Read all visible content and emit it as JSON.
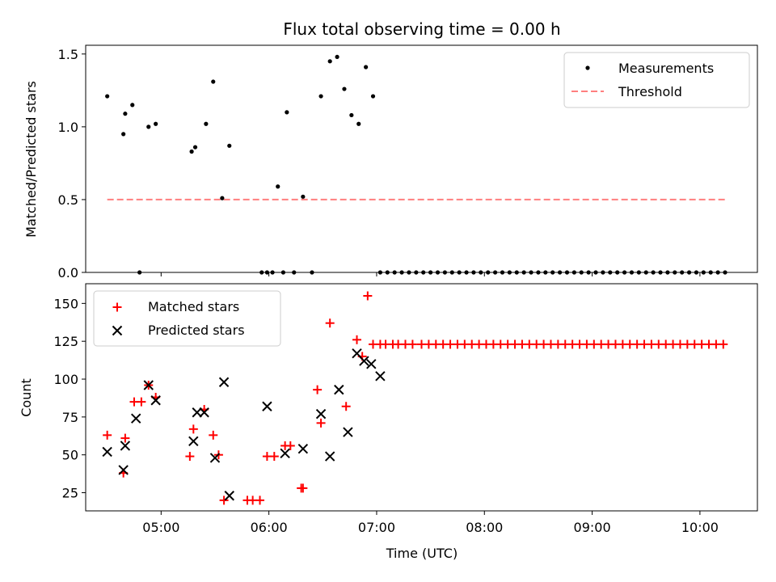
{
  "chart_data": [
    {
      "type": "scatter",
      "title": "Flux total observing time = 0.00 h",
      "xlabel": "",
      "ylabel": "Matched/Predicted stars",
      "xlim": [
        "04:18",
        "10:32"
      ],
      "ylim": [
        0,
        1.56
      ],
      "yticks": [
        0.0,
        0.5,
        1.0,
        1.5
      ],
      "ytick_labels": [
        "0.0",
        "0.5",
        "1.0",
        "1.5"
      ],
      "legend_position": "upper right",
      "series": [
        {
          "name": "Measurements",
          "marker": "dot",
          "color": "#000000",
          "x": [
            "04:30",
            "04:39",
            "04:40",
            "04:44",
            "04:48",
            "04:53",
            "04:57",
            "05:17",
            "05:19",
            "05:25",
            "05:29",
            "05:34",
            "05:38",
            "05:56",
            "05:59",
            "06:02",
            "06:05",
            "06:08",
            "06:10",
            "06:14",
            "06:19",
            "06:24",
            "06:29",
            "06:34",
            "06:38",
            "06:42",
            "06:46",
            "06:50",
            "06:54",
            "06:58",
            "07:02",
            "07:06",
            "07:10",
            "07:14",
            "07:18",
            "07:22",
            "07:26",
            "07:30",
            "07:34",
            "07:38",
            "07:42",
            "07:46",
            "07:50",
            "07:54",
            "07:58",
            "08:02",
            "08:06",
            "08:10",
            "08:14",
            "08:18",
            "08:22",
            "08:26",
            "08:30",
            "08:34",
            "08:38",
            "08:42",
            "08:46",
            "08:50",
            "08:54",
            "08:58",
            "09:02",
            "09:06",
            "09:10",
            "09:14",
            "09:18",
            "09:22",
            "09:26",
            "09:30",
            "09:34",
            "09:38",
            "09:42",
            "09:46",
            "09:50",
            "09:54",
            "09:58",
            "10:02",
            "10:06",
            "10:10",
            "10:14"
          ],
          "y": [
            1.21,
            0.95,
            1.09,
            1.15,
            0.0,
            1.0,
            1.02,
            0.83,
            0.86,
            1.02,
            1.31,
            0.51,
            0.87,
            0.0,
            0.0,
            0.0,
            0.59,
            0.0,
            1.1,
            0.0,
            0.52,
            0.0,
            1.21,
            1.45,
            1.48,
            1.26,
            1.08,
            1.02,
            1.41,
            1.21,
            0.0,
            0.0,
            0.0,
            0.0,
            0.0,
            0.0,
            0.0,
            0.0,
            0.0,
            0.0,
            0.0,
            0.0,
            0.0,
            0.0,
            0.0,
            0.0,
            0.0,
            0.0,
            0.0,
            0.0,
            0.0,
            0.0,
            0.0,
            0.0,
            0.0,
            0.0,
            0.0,
            0.0,
            0.0,
            0.0,
            0.0,
            0.0,
            0.0,
            0.0,
            0.0,
            0.0,
            0.0,
            0.0,
            0.0,
            0.0,
            0.0,
            0.0,
            0.0,
            0.0,
            0.0,
            0.0,
            0.0,
            0.0,
            0.0
          ]
        },
        {
          "name": "Threshold",
          "marker": "dashed-line",
          "color": "#ff7f7f",
          "x": [
            "04:30",
            "10:15"
          ],
          "y": [
            0.5,
            0.5
          ]
        }
      ]
    },
    {
      "type": "scatter",
      "title": "",
      "xlabel": "Time (UTC)",
      "ylabel": "Count",
      "xlim": [
        "04:18",
        "10:32"
      ],
      "ylim": [
        13,
        163
      ],
      "yticks": [
        25,
        50,
        75,
        100,
        125,
        150
      ],
      "xticks": [
        "05:00",
        "06:00",
        "07:00",
        "08:00",
        "09:00",
        "10:00"
      ],
      "legend_position": "upper left",
      "series": [
        {
          "name": "Matched stars",
          "marker": "plus",
          "color": "#ff0000",
          "x": [
            "04:30",
            "04:39",
            "04:40",
            "04:45",
            "04:49",
            "04:53",
            "04:57",
            "05:16",
            "05:18",
            "05:24",
            "05:29",
            "05:32",
            "05:35",
            "05:48",
            "05:51",
            "05:55",
            "05:59",
            "06:03",
            "06:09",
            "06:12",
            "06:18",
            "06:19",
            "06:27",
            "06:29",
            "06:34",
            "06:43",
            "06:49",
            "06:52",
            "06:55",
            "06:58",
            "07:02",
            "07:05",
            "07:09",
            "07:12",
            "07:16",
            "07:20",
            "07:25",
            "07:29",
            "07:33",
            "07:37",
            "07:41",
            "07:45",
            "07:49",
            "07:53",
            "07:57",
            "08:01",
            "08:05",
            "08:09",
            "08:13",
            "08:17",
            "08:21",
            "08:25",
            "08:29",
            "08:33",
            "08:37",
            "08:41",
            "08:45",
            "08:49",
            "08:53",
            "08:57",
            "09:01",
            "09:05",
            "09:09",
            "09:13",
            "09:17",
            "09:21",
            "09:25",
            "09:29",
            "09:33",
            "09:37",
            "09:41",
            "09:45",
            "09:49",
            "09:53",
            "09:57",
            "10:01",
            "10:05",
            "10:09",
            "10:13"
          ],
          "y": [
            63,
            38,
            61,
            85,
            85,
            96,
            88,
            49,
            67,
            80,
            63,
            50,
            20,
            20,
            20,
            20,
            49,
            49,
            56,
            56,
            28,
            28,
            93,
            71,
            137,
            82,
            126,
            115,
            155,
            123,
            123,
            123,
            123,
            123,
            123,
            123,
            123,
            123,
            123,
            123,
            123,
            123,
            123,
            123,
            123,
            123,
            123,
            123,
            123,
            123,
            123,
            123,
            123,
            123,
            123,
            123,
            123,
            123,
            123,
            123,
            123,
            123,
            123,
            123,
            123,
            123,
            123,
            123,
            123,
            123,
            123,
            123,
            123,
            123,
            123,
            123,
            123,
            123,
            123
          ]
        },
        {
          "name": "Predicted stars",
          "marker": "x",
          "color": "#000000",
          "x": [
            "04:30",
            "04:39",
            "04:40",
            "04:46",
            "04:53",
            "04:57",
            "05:18",
            "05:20",
            "05:24",
            "05:30",
            "05:35",
            "05:38",
            "05:59",
            "06:09",
            "06:19",
            "06:29",
            "06:34",
            "06:39",
            "06:44",
            "06:49",
            "06:53",
            "06:57",
            "07:02"
          ],
          "y": [
            52,
            40,
            56,
            74,
            96,
            86,
            59,
            78,
            78,
            48,
            98,
            23,
            82,
            51,
            54,
            77,
            49,
            93,
            65,
            117,
            112,
            110,
            102
          ]
        }
      ]
    }
  ]
}
